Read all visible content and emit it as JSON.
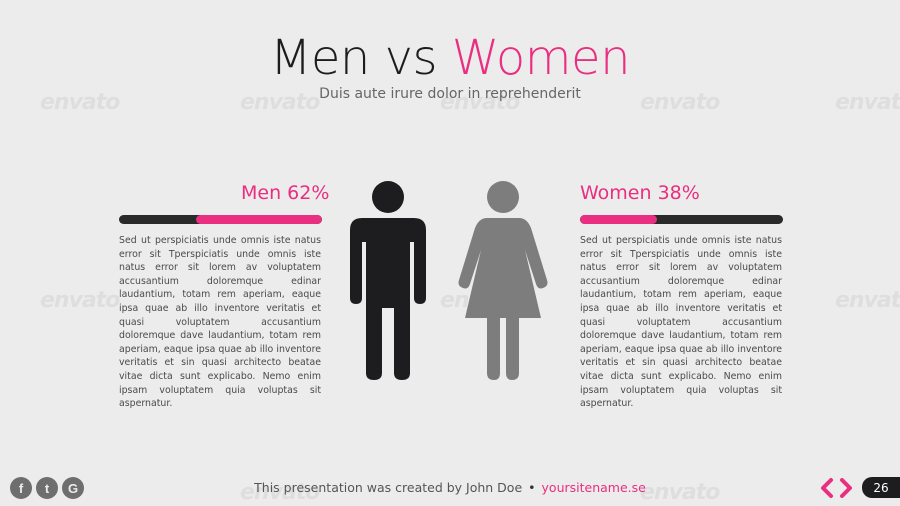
{
  "title": {
    "part1": "Men vs ",
    "part2": "Women"
  },
  "subtitle": "Duis aute irure dolor in reprehenderit",
  "watermark": "envato",
  "men": {
    "label": "Men 62%",
    "percent": 0.62,
    "text": "Sed ut perspiciatis unde omnis iste natus error sit Tperspiciatis unde omnis iste natus error sit lorem av voluptatem accusantium doloremque edinar laudantium, totam rem aperiam, eaque ipsa quae ab illo inventore veritatis et quasi voluptatem accusantium doloremque dave laudantium, totam rem aperiam, eaque ipsa quae ab illo inventore veritatis et sin quasi architecto beatae vitae dicta sunt explicabo. Nemo enim ipsam voluptatem quia voluptas sit aspernatur."
  },
  "women": {
    "label": "Women 38%",
    "percent": 0.38,
    "text": "Sed ut perspiciatis unde omnis iste natus error sit Tperspiciatis unde omnis iste natus error sit lorem av voluptatem accusantium doloremque edinar laudantium, totam rem aperiam, eaque ipsa quae ab illo inventore veritatis et quasi voluptatem accusantium doloremque dave laudantium, totam rem aperiam, eaque ipsa quae ab illo inventore veritatis et sin quasi architecto beatae vitae dicta sunt explicabo. Nemo enim ipsam voluptatem quia voluptas sit aspernatur."
  },
  "icons": {
    "man": "man-figure-icon",
    "woman": "woman-figure-icon",
    "prev": "chevron-left-icon",
    "next": "chevron-right-icon"
  },
  "social": [
    {
      "icon": "facebook-icon",
      "glyph": "f"
    },
    {
      "icon": "twitter-icon",
      "glyph": "t"
    },
    {
      "icon": "google-icon",
      "glyph": "G"
    }
  ],
  "footer": {
    "credit": "This presentation was created by John Doe",
    "site": "yoursitename.se"
  },
  "page_number": "26",
  "colors": {
    "accent": "#ea2e80",
    "dark": "#1d1d1f",
    "woman_figure": "#7d7d7d",
    "background": "#ececec"
  }
}
